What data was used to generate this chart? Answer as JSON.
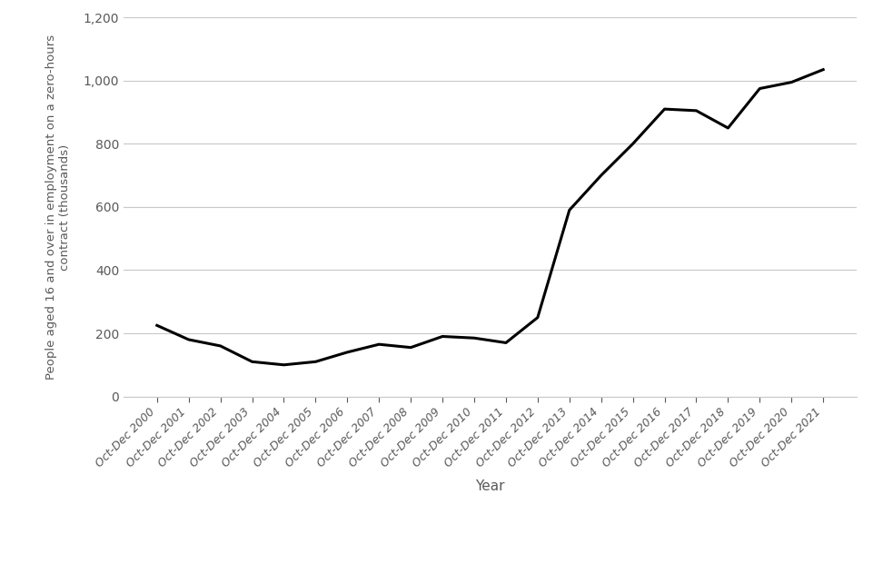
{
  "x_labels": [
    "Oct-Dec 2000",
    "Oct-Dec 2001",
    "Oct-Dec 2002",
    "Oct-Dec 2003",
    "Oct-Dec 2004",
    "Oct-Dec 2005",
    "Oct-Dec 2006",
    "Oct-Dec 2007",
    "Oct-Dec 2008",
    "Oct-Dec 2009",
    "Oct-Dec 2010",
    "Oct-Dec 2011",
    "Oct-Dec 2012",
    "Oct-Dec 2013",
    "Oct-Dec 2014",
    "Oct-Dec 2015",
    "Oct-Dec 2016",
    "Oct-Dec 2017",
    "Oct-Dec 2018",
    "Oct-Dec 2019",
    "Oct-Dec 2020",
    "Oct-Dec 2021"
  ],
  "values": [
    225,
    180,
    160,
    110,
    100,
    110,
    140,
    165,
    155,
    190,
    185,
    170,
    250,
    590,
    700,
    800,
    910,
    905,
    850,
    975,
    995,
    1035
  ],
  "ylabel_line1": "People aged 16 and over in employment on a zero-hours",
  "ylabel_line2": "contract (thousands)",
  "xlabel": "Year",
  "ylim": [
    0,
    1200
  ],
  "yticks": [
    0,
    200,
    400,
    600,
    800,
    1000,
    1200
  ],
  "line_color": "#000000",
  "line_width": 2.2,
  "background_color": "#ffffff",
  "grid_color": "#c8c8c8",
  "label_color": "#595959",
  "tick_label_color": "#595959"
}
